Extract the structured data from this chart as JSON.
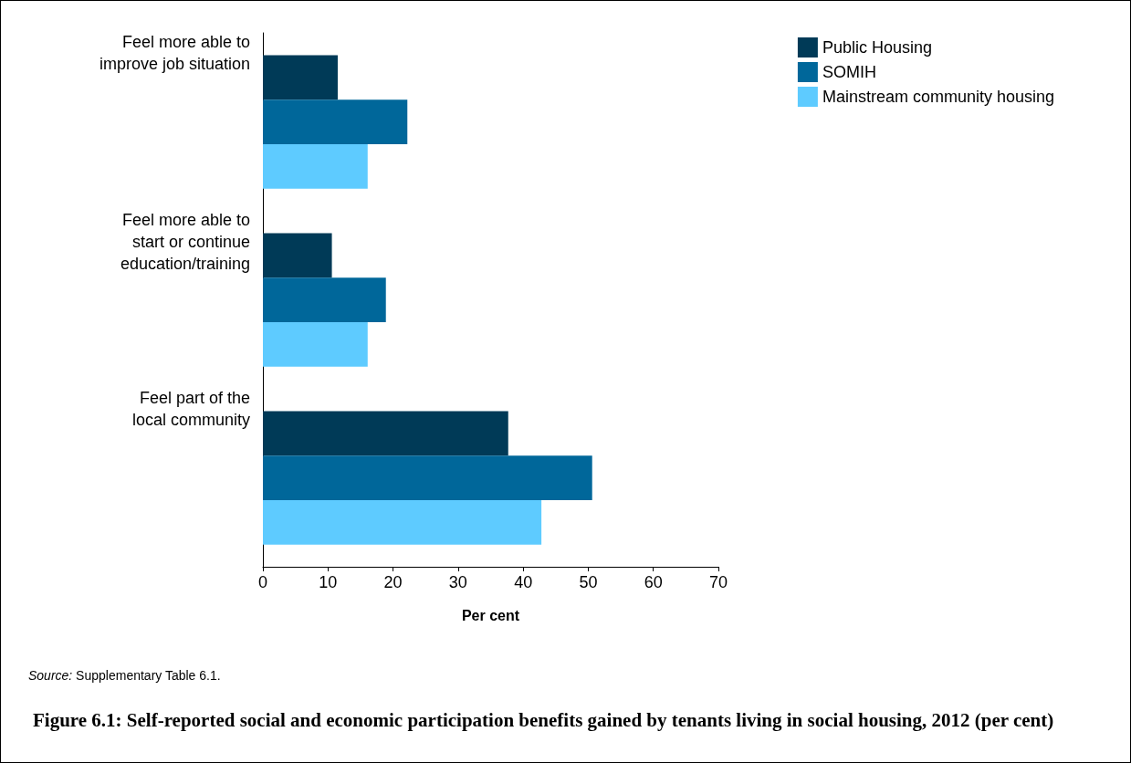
{
  "chart_data": {
    "type": "bar",
    "orientation": "horizontal",
    "title": "Figure 6.1: Self-reported social and economic participation benefits gained by tenants living in social housing, 2012 (per cent)",
    "xlabel": "Per cent",
    "annotations": [
      "Source: Supplementary Table 6.1."
    ],
    "categories": [
      "Feel more able to\nimprove job situation",
      "Feel more able to\nstart or continue\neducation/training",
      "Feel part of the\nlocal community"
    ],
    "series": [
      {
        "name": "Public Housing",
        "color": "#003a57",
        "values": [
          11.5,
          10.6,
          37.7
        ]
      },
      {
        "name": "SOMIH",
        "color": "#00679a",
        "values": [
          22.2,
          18.9,
          50.6
        ]
      },
      {
        "name": "Mainstream community housing",
        "color": "#5ecbff",
        "values": [
          16.1,
          16.1,
          42.8
        ]
      }
    ],
    "xlim": [
      0,
      70
    ],
    "xticks": [
      0,
      10,
      20,
      30,
      40,
      50,
      60,
      70
    ],
    "grid": false,
    "legend": "top right"
  }
}
